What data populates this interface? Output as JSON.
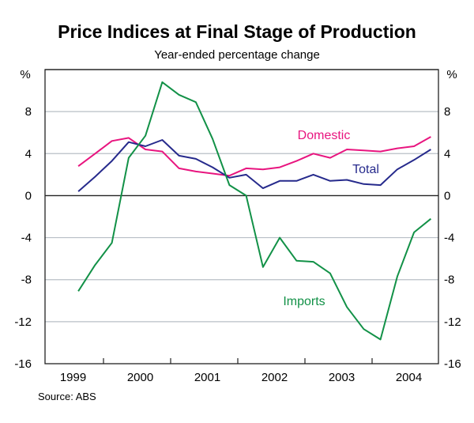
{
  "chart_data": {
    "type": "line",
    "title": "Price Indices at Final Stage of Production",
    "subtitle": "Year-ended percentage change",
    "ylabel_left": "%",
    "ylabel_right": "%",
    "source": "Source: ABS",
    "ylim": [
      -16,
      12
    ],
    "yticks": [
      -16,
      -12,
      -8,
      -4,
      0,
      4,
      8
    ],
    "xlim": [
      1999,
      2005
    ],
    "xtick_labels": [
      "1999",
      "2000",
      "2001",
      "2002",
      "2003",
      "2004"
    ],
    "grid": true,
    "x": [
      "1999-Q3",
      "1999-Q4",
      "2000-Q1",
      "2000-Q2",
      "2000-Q3",
      "2000-Q4",
      "2001-Q1",
      "2001-Q2",
      "2001-Q3",
      "2001-Q4",
      "2002-Q1",
      "2002-Q2",
      "2002-Q3",
      "2002-Q4",
      "2003-Q1",
      "2003-Q2",
      "2003-Q3",
      "2003-Q4",
      "2004-Q1",
      "2004-Q2",
      "2004-Q3",
      "2004-Q4"
    ],
    "series": [
      {
        "name": "Domestic",
        "color": "#e8157f",
        "values": [
          2.8,
          4.0,
          5.2,
          5.5,
          4.4,
          4.2,
          2.6,
          2.3,
          2.1,
          1.9,
          2.6,
          2.5,
          2.7,
          3.3,
          4.0,
          3.6,
          4.4,
          4.3,
          4.2,
          4.5,
          4.7,
          5.6
        ]
      },
      {
        "name": "Total",
        "color": "#262a8c",
        "values": [
          0.4,
          1.8,
          3.3,
          5.1,
          4.7,
          5.3,
          3.8,
          3.5,
          2.7,
          1.7,
          2.0,
          0.7,
          1.4,
          1.4,
          2.0,
          1.4,
          1.5,
          1.1,
          1.0,
          2.5,
          3.4,
          4.4
        ]
      },
      {
        "name": "Imports",
        "color": "#129147",
        "values": [
          -9.1,
          -6.6,
          -4.5,
          3.6,
          5.7,
          10.8,
          9.6,
          8.9,
          5.4,
          1.0,
          0.0,
          -6.8,
          -4.0,
          -6.2,
          -6.3,
          -7.4,
          -10.6,
          -12.7,
          -13.7,
          -7.7,
          -3.5,
          -2.2
        ]
      }
    ]
  }
}
